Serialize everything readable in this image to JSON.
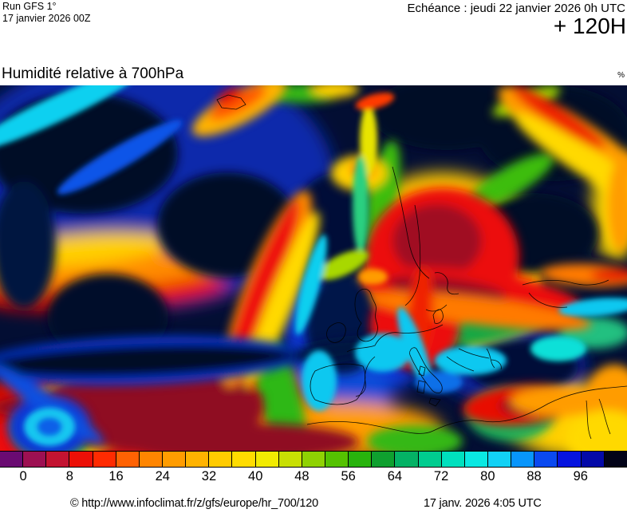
{
  "header": {
    "run_model": "Run GFS 1°",
    "run_date": "17 janvier 2026 00Z",
    "echeance": "Echéance : jeudi 22 janvier 2026 0h UTC",
    "forecast_offset": "+ 120H"
  },
  "map": {
    "title": "Humidité relative à 700hPa",
    "unit": "%"
  },
  "scale": {
    "labels": [
      "0",
      "8",
      "16",
      "24",
      "32",
      "40",
      "48",
      "56",
      "64",
      "72",
      "80",
      "88",
      "96"
    ],
    "colors": [
      "#6A0B72",
      "#9D1052",
      "#C31331",
      "#EC1007",
      "#FF2B01",
      "#FF6203",
      "#FF8500",
      "#FF9C00",
      "#FFB300",
      "#FFCB00",
      "#FFDC00",
      "#F2EB02",
      "#C8DF04",
      "#8FD203",
      "#55C201",
      "#28B30D",
      "#0FA02F",
      "#04B265",
      "#00CC8F",
      "#00E0BE",
      "#0AE8E2",
      "#12D1F5",
      "#0895FB",
      "#0A49F0",
      "#0614DF",
      "#0409A8",
      "#020318"
    ],
    "step": 4,
    "unit": "%"
  },
  "footer": {
    "copyright": "© http://www.infoclimat.fr/z/gfs/europe/hr_700/120",
    "timestamp": "17 janv. 2026  4:05 UTC"
  }
}
